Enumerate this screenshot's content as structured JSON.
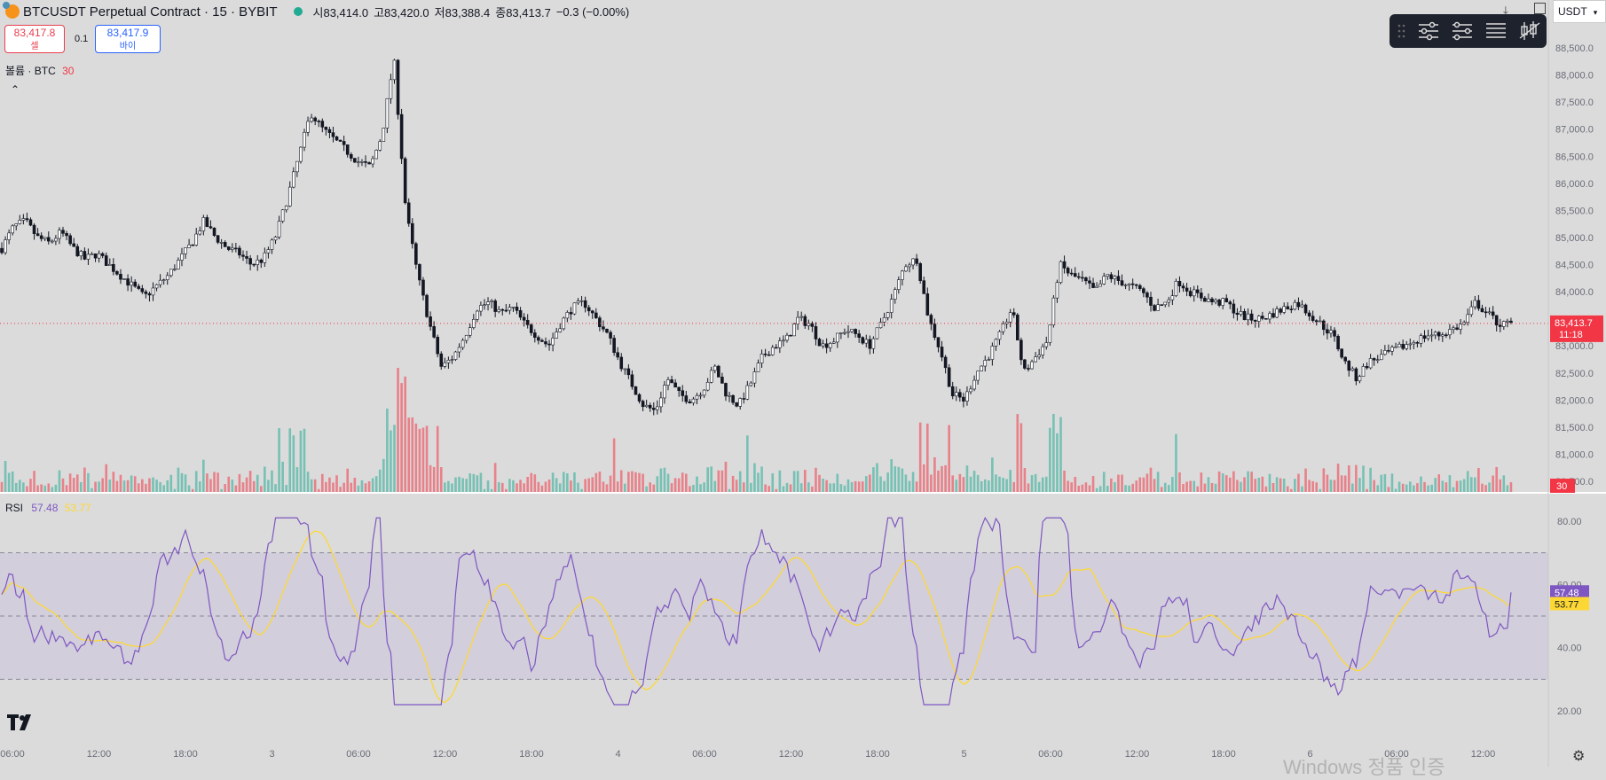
{
  "header": {
    "symbol_title": "BTCUSDT Perpetual Contract · 15 · BYBIT",
    "ohlc": [
      {
        "label": "시",
        "value": "83,414.0"
      },
      {
        "label": "고",
        "value": "83,420.0"
      },
      {
        "label": "저",
        "value": "83,388.4"
      },
      {
        "label": "종",
        "value": "83,413.7"
      }
    ],
    "change": "−0.3 (−0.00%)",
    "currency": "USDT"
  },
  "trade": {
    "sell_price": "83,417.8",
    "sell_label": "셀",
    "spread": "0.1",
    "buy_price": "83,417.9",
    "buy_label": "바이"
  },
  "volume_legend": {
    "label": "볼륨 · BTC",
    "value": "30"
  },
  "price_axis": {
    "ticks": [
      "88,500.0",
      "88,000.0",
      "87,500.0",
      "87,000.0",
      "86,500.0",
      "86,000.0",
      "85,500.0",
      "85,000.0",
      "84,500.0",
      "84,000.0",
      "83,500.0",
      "83,000.0",
      "82,500.0",
      "82,000.0",
      "81,500.0",
      "81,000.0",
      "80,500.0"
    ],
    "last_price": "83,413.7",
    "countdown": "11:18",
    "volume_badge": "30"
  },
  "rsi": {
    "label": "RSI",
    "value": "57.48",
    "ma_value": "53.77",
    "ticks": [
      "80.00",
      "60.00",
      "40.00",
      "20.00"
    ]
  },
  "time_axis": [
    "06:00",
    "12:00",
    "18:00",
    "3",
    "06:00",
    "12:00",
    "18:00",
    "4",
    "06:00",
    "12:00",
    "18:00",
    "5",
    "06:00",
    "12:00",
    "18:00",
    "6",
    "06:00",
    "12:00"
  ],
  "watermark": "Windows 정품 인증",
  "colors": {
    "up": "#22ab94",
    "down": "#f23645",
    "rsi": "#7e57c2",
    "rsi_ma": "#fdd835",
    "band": "#cfc9dc"
  },
  "chart_data": {
    "type": "candlestick",
    "symbol": "BTCUSDT",
    "ylim": [
      80400,
      88700
    ],
    "close_path": [
      84800,
      85200,
      85300,
      85000,
      84900,
      85100,
      84800,
      84600,
      84700,
      84500,
      84300,
      84100,
      83900,
      84100,
      84300,
      84600,
      84900,
      85300,
      85000,
      84800,
      84700,
      84500,
      84600,
      85000,
      85700,
      86500,
      87300,
      87000,
      86800,
      86600,
      86400,
      86300,
      86900,
      88300,
      85500,
      84300,
      83400,
      82600,
      82800,
      83200,
      83700,
      83800,
      83600,
      83700,
      83400,
      83200,
      83000,
      83400,
      83700,
      83800,
      83500,
      83200,
      82700,
      82300,
      81900,
      81800,
      82400,
      82100,
      82000,
      82200,
      82600,
      82100,
      81900,
      82300,
      82800,
      83000,
      83100,
      83500,
      83400,
      83000,
      83100,
      83300,
      83200,
      83000,
      83400,
      83900,
      84500,
      84600,
      83500,
      82900,
      82100,
      82000,
      82500,
      82800,
      83200,
      83700,
      82500,
      82800,
      83100,
      84500,
      84300,
      84200,
      84000,
      84300,
      84200,
      84100,
      84000,
      83700,
      83800,
      84200,
      84000,
      83900,
      83800,
      83800,
      83600,
      83500,
      83500,
      83600,
      83700,
      83800,
      83600,
      83400,
      83200,
      82700,
      82400,
      82700,
      82800,
      82900,
      83000,
      83100,
      83200,
      83200,
      83300,
      83400,
      83800,
      83600,
      83400,
      83400
    ],
    "volume_ylim": [
      0,
      30
    ],
    "rsi": {
      "ylim": [
        15,
        85
      ],
      "upper": 70,
      "middle": 50,
      "lower": 30,
      "last": 57.48,
      "ma_last": 53.77
    }
  }
}
